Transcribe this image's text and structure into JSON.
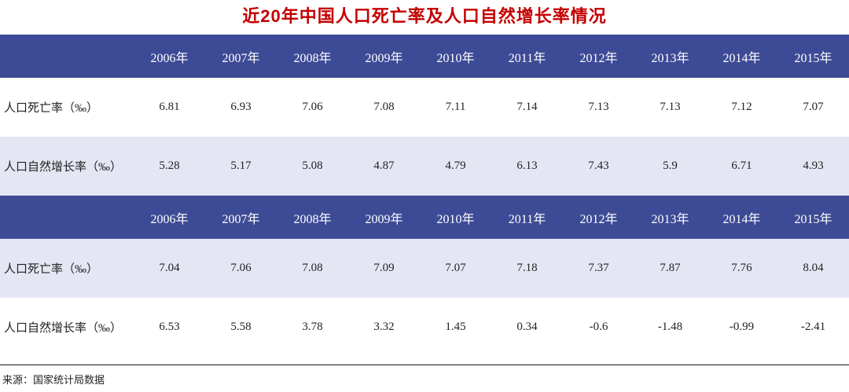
{
  "title": "近20年中国人口死亡率及人口自然增长率情况",
  "source": "来源：国家统计局数据",
  "colors": {
    "title_red": "#c40000",
    "header_blue": "#3d4b96",
    "alt_row_bg": "#e4e7f3",
    "header_text": "#ffffff",
    "body_text": "#222222"
  },
  "chart_data": [
    {
      "type": "table",
      "title": "近20年中国人口死亡率及人口自然增长率情况（上表）",
      "columns": [
        "2006年",
        "2007年",
        "2008年",
        "2009年",
        "2010年",
        "2011年",
        "2012年",
        "2013年",
        "2014年",
        "2015年"
      ],
      "rows": [
        {
          "label": "人口死亡率（‰）",
          "values": [
            "6.81",
            "6.93",
            "7.06",
            "7.08",
            "7.11",
            "7.14",
            "7.13",
            "7.13",
            "7.12",
            "7.07"
          ]
        },
        {
          "label": "人口自然增长率（‰）",
          "values": [
            "5.28",
            "5.17",
            "5.08",
            "4.87",
            "4.79",
            "6.13",
            "7.43",
            "5.9",
            "6.71",
            "4.93"
          ]
        }
      ]
    },
    {
      "type": "table",
      "title": "近20年中国人口死亡率及人口自然增长率情况（下表）",
      "columns": [
        "2006年",
        "2007年",
        "2008年",
        "2009年",
        "2010年",
        "2011年",
        "2012年",
        "2013年",
        "2014年",
        "2015年"
      ],
      "rows": [
        {
          "label": "人口死亡率（‰）",
          "values": [
            "7.04",
            "7.06",
            "7.08",
            "7.09",
            "7.07",
            "7.18",
            "7.37",
            "7.87",
            "7.76",
            "8.04"
          ]
        },
        {
          "label": "人口自然增长率（‰）",
          "values": [
            "6.53",
            "5.58",
            "3.78",
            "3.32",
            "1.45",
            "0.34",
            "-0.6",
            "-1.48",
            "-0.99",
            "-2.41"
          ]
        }
      ]
    }
  ]
}
